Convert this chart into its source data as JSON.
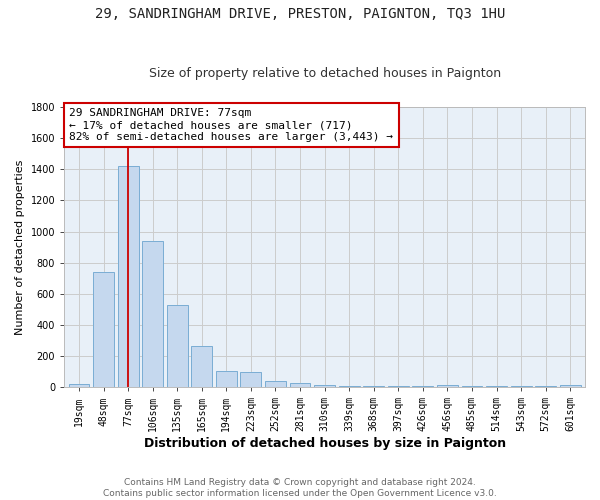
{
  "title1": "29, SANDRINGHAM DRIVE, PRESTON, PAIGNTON, TQ3 1HU",
  "title2": "Size of property relative to detached houses in Paignton",
  "xlabel": "Distribution of detached houses by size in Paignton",
  "ylabel": "Number of detached properties",
  "categories": [
    "19sqm",
    "48sqm",
    "77sqm",
    "106sqm",
    "135sqm",
    "165sqm",
    "194sqm",
    "223sqm",
    "252sqm",
    "281sqm",
    "310sqm",
    "339sqm",
    "368sqm",
    "397sqm",
    "426sqm",
    "456sqm",
    "485sqm",
    "514sqm",
    "543sqm",
    "572sqm",
    "601sqm"
  ],
  "values": [
    20,
    740,
    1420,
    940,
    530,
    265,
    105,
    95,
    40,
    28,
    15,
    5,
    5,
    5,
    5,
    12,
    5,
    5,
    5,
    5,
    12
  ],
  "bar_color": "#c5d8ee",
  "bar_edge_color": "#7aadd4",
  "vline_index": 2,
  "vline_color": "#cc0000",
  "annotation_text": "29 SANDRINGHAM DRIVE: 77sqm\n← 17% of detached houses are smaller (717)\n82% of semi-detached houses are larger (3,443) →",
  "annotation_box_facecolor": "#ffffff",
  "annotation_box_edgecolor": "#cc0000",
  "ylim": [
    0,
    1800
  ],
  "yticks": [
    0,
    200,
    400,
    600,
    800,
    1000,
    1200,
    1400,
    1600,
    1800
  ],
  "grid_color": "#cccccc",
  "fig_bg_color": "#ffffff",
  "plot_bg_color": "#e8f0f8",
  "footer": "Contains HM Land Registry data © Crown copyright and database right 2024.\nContains public sector information licensed under the Open Government Licence v3.0.",
  "title1_fontsize": 10,
  "title2_fontsize": 9,
  "xlabel_fontsize": 9,
  "ylabel_fontsize": 8,
  "tick_fontsize": 7,
  "annotation_fontsize": 8,
  "footer_fontsize": 6.5
}
